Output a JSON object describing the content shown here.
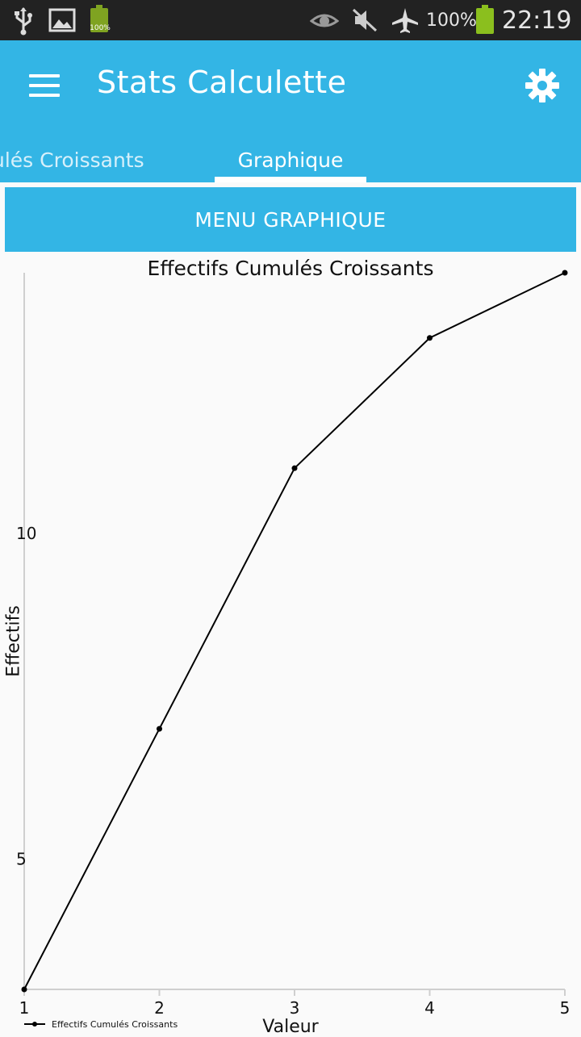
{
  "status_bar": {
    "battery_small_label": "100%",
    "battery_percent": "100%",
    "time": "22:19",
    "icons": [
      "usb-icon",
      "image-icon",
      "battery-icon",
      "eye-icon",
      "mute-icon",
      "airplane-icon",
      "battery-icon"
    ]
  },
  "app_bar": {
    "title": "Stats Calculette",
    "tabs": [
      {
        "label": "ulés Croissants"
      },
      {
        "label": "Graphique"
      }
    ],
    "accent": "#33b5e5"
  },
  "button": {
    "label": "MENU GRAPHIQUE"
  },
  "chart_data": {
    "type": "line",
    "title": "Effectifs Cumulés Croissants",
    "xlabel": "Valeur",
    "ylabel": "Effectifs",
    "x": [
      1,
      2,
      3,
      4,
      5
    ],
    "series": [
      {
        "name": "Effectifs Cumulés Croissants",
        "values": [
          3,
          7,
          11,
          13,
          14
        ]
      }
    ],
    "x_ticks": [
      "1",
      "2",
      "3",
      "4",
      "5"
    ],
    "y_ticks": [
      "5",
      "10"
    ],
    "xlim": [
      1,
      5
    ],
    "ylim": [
      3,
      14
    ],
    "grid": false,
    "legend": "bottom-left"
  }
}
